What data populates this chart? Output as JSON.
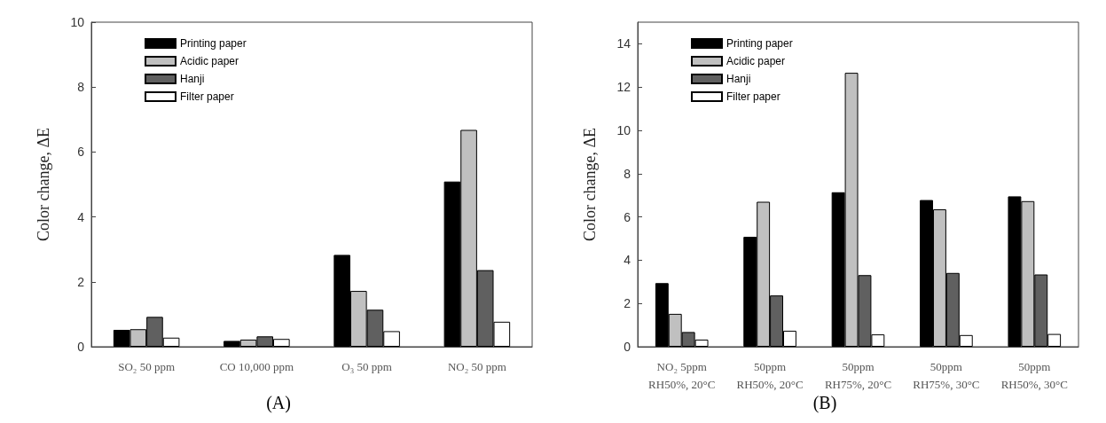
{
  "chart_data": [
    {
      "type": "bar",
      "title": "(A)",
      "ylabel": "Color change, ΔE",
      "categories": [
        "SO₂ 50 ppm",
        "CO 10,000 ppm",
        "O₃ 50 ppm",
        "NO₂ 50 ppm"
      ],
      "series": [
        {
          "name": "Printing paper",
          "color": "#000000",
          "values": [
            0.52,
            0.18,
            2.83,
            5.09
          ]
        },
        {
          "name": "Acidic paper",
          "color": "#c0c0c0",
          "values": [
            0.54,
            0.22,
            1.72,
            6.68
          ]
        },
        {
          "name": "Hanji",
          "color": "#606060",
          "values": [
            0.92,
            0.32,
            1.14,
            2.36
          ]
        },
        {
          "name": "Filter paper",
          "color": "#ffffff",
          "values": [
            0.28,
            0.24,
            0.48,
            0.77
          ]
        }
      ],
      "ylim": [
        0,
        10
      ],
      "yticks": [
        0,
        2,
        4,
        6,
        8,
        10
      ],
      "grid": false,
      "legend": "top left"
    },
    {
      "type": "bar",
      "title": "(B)",
      "ylabel": "Color change, ΔE",
      "categories": [
        "NO₂ 5ppm\nRH50%, 20°C",
        "50ppm\nRH50%, 20°C",
        "50ppm\nRH75%, 20°C",
        "50ppm\nRH75%, 30°C",
        "50ppm\nRH50%, 30°C"
      ],
      "series": [
        {
          "name": "Printing paper",
          "color": "#000000",
          "values": [
            2.94,
            5.08,
            7.14,
            6.78,
            6.95
          ]
        },
        {
          "name": "Acidic paper",
          "color": "#c0c0c0",
          "values": [
            1.52,
            6.7,
            12.66,
            6.35,
            6.73
          ]
        },
        {
          "name": "Hanji",
          "color": "#606060",
          "values": [
            0.68,
            2.37,
            3.31,
            3.41,
            3.34
          ]
        },
        {
          "name": "Filter paper",
          "color": "#ffffff",
          "values": [
            0.33,
            0.74,
            0.57,
            0.54,
            0.59
          ]
        }
      ],
      "ylim": [
        0,
        15
      ],
      "yticks": [
        0,
        2,
        4,
        6,
        8,
        10,
        12,
        14
      ],
      "grid": false,
      "legend": "top left"
    }
  ]
}
